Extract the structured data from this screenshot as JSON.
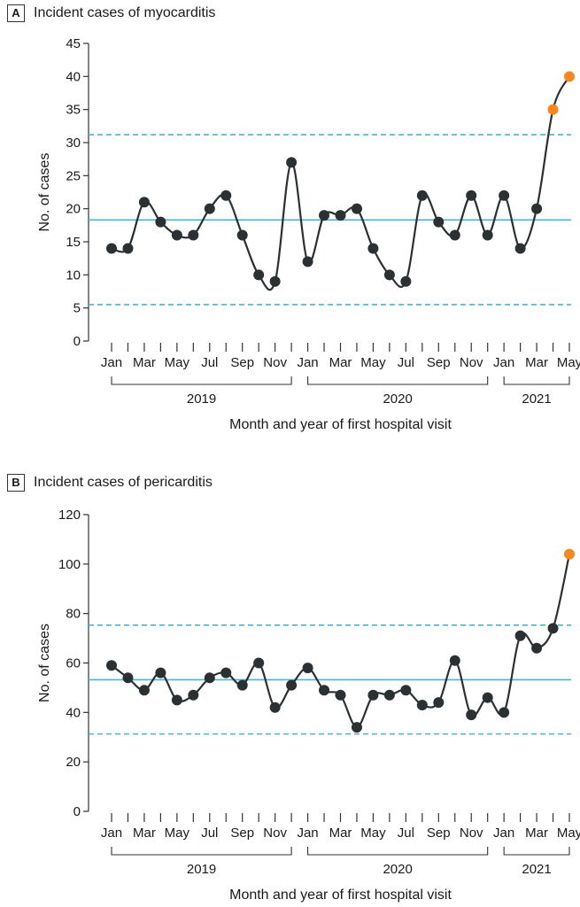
{
  "chart_data": [
    {
      "type": "line",
      "panel_label": "A",
      "title": "Incident cases of myocarditis",
      "xlabel": "Month and year of first hospital visit",
      "ylabel": "No. of cases",
      "ylim": [
        0,
        45
      ],
      "yticks": [
        0,
        5,
        10,
        15,
        20,
        25,
        30,
        35,
        40,
        45
      ],
      "x": [
        "Jan 2019",
        "Feb 2019",
        "Mar 2019",
        "Apr 2019",
        "May 2019",
        "Jun 2019",
        "Jul 2019",
        "Aug 2019",
        "Sep 2019",
        "Oct 2019",
        "Nov 2019",
        "Dec 2019",
        "Jan 2020",
        "Feb 2020",
        "Mar 2020",
        "Apr 2020",
        "May 2020",
        "Jun 2020",
        "Jul 2020",
        "Aug 2020",
        "Sep 2020",
        "Oct 2020",
        "Nov 2020",
        "Dec 2020",
        "Jan 2021",
        "Feb 2021",
        "Mar 2021",
        "Apr 2021",
        "May 2021"
      ],
      "values": [
        14,
        14,
        21,
        18,
        16,
        16,
        20,
        22,
        16,
        10,
        9,
        27,
        12,
        19,
        19,
        20,
        14,
        10,
        9,
        22,
        18,
        16,
        22,
        16,
        22,
        14,
        20,
        35,
        40
      ],
      "highlighted_points": [
        "Apr 2021",
        "May 2021"
      ],
      "center_line": 18.3,
      "upper_limit": 31.2,
      "lower_limit": 5.5,
      "tick_labels": [
        {
          "x": "Jan 2019",
          "label": "Jan"
        },
        {
          "x": "Mar 2019",
          "label": "Mar"
        },
        {
          "x": "May 2019",
          "label": "May"
        },
        {
          "x": "Jul 2019",
          "label": "Jul"
        },
        {
          "x": "Sep 2019",
          "label": "Sep"
        },
        {
          "x": "Nov 2019",
          "label": "Nov"
        },
        {
          "x": "Jan 2020",
          "label": "Jan"
        },
        {
          "x": "Mar 2020",
          "label": "Mar"
        },
        {
          "x": "May 2020",
          "label": "May"
        },
        {
          "x": "Jul 2020",
          "label": "Jul"
        },
        {
          "x": "Sep 2020",
          "label": "Sep"
        },
        {
          "x": "Nov 2020",
          "label": "Nov"
        },
        {
          "x": "Jan 2021",
          "label": "Jan"
        },
        {
          "x": "Mar 2021",
          "label": "Mar"
        },
        {
          "x": "May 2021",
          "label": "May"
        }
      ],
      "year_groups": [
        {
          "label": "2019",
          "start": "Jan 2019",
          "end": "Dec 2019"
        },
        {
          "label": "2020",
          "start": "Jan 2020",
          "end": "Dec 2020"
        },
        {
          "label": "2021",
          "start": "Jan 2021",
          "end": "May 2021"
        }
      ],
      "grid": false
    },
    {
      "type": "line",
      "panel_label": "B",
      "title": "Incident cases of pericarditis",
      "xlabel": "Month and year of first hospital visit",
      "ylabel": "No. of cases",
      "ylim": [
        0,
        120
      ],
      "yticks": [
        0,
        20,
        40,
        60,
        80,
        100,
        120
      ],
      "x": [
        "Jan 2019",
        "Feb 2019",
        "Mar 2019",
        "Apr 2019",
        "May 2019",
        "Jun 2019",
        "Jul 2019",
        "Aug 2019",
        "Sep 2019",
        "Oct 2019",
        "Nov 2019",
        "Dec 2019",
        "Jan 2020",
        "Feb 2020",
        "Mar 2020",
        "Apr 2020",
        "May 2020",
        "Jun 2020",
        "Jul 2020",
        "Aug 2020",
        "Sep 2020",
        "Oct 2020",
        "Nov 2020",
        "Dec 2020",
        "Jan 2021",
        "Feb 2021",
        "Mar 2021",
        "Apr 2021",
        "May 2021"
      ],
      "values": [
        59,
        54,
        49,
        56,
        45,
        47,
        54,
        56,
        51,
        60,
        42,
        51,
        58,
        49,
        47,
        34,
        47,
        47,
        49,
        43,
        44,
        61,
        39,
        46,
        40,
        71,
        66,
        74,
        104
      ],
      "highlighted_points": [
        "May 2021"
      ],
      "center_line": 53.2,
      "upper_limit": 75.3,
      "lower_limit": 31.3,
      "tick_labels": [
        {
          "x": "Jan 2019",
          "label": "Jan"
        },
        {
          "x": "Mar 2019",
          "label": "Mar"
        },
        {
          "x": "May 2019",
          "label": "May"
        },
        {
          "x": "Jul 2019",
          "label": "Jul"
        },
        {
          "x": "Sep 2019",
          "label": "Sep"
        },
        {
          "x": "Nov 2019",
          "label": "Nov"
        },
        {
          "x": "Jan 2020",
          "label": "Jan"
        },
        {
          "x": "Mar 2020",
          "label": "Mar"
        },
        {
          "x": "May 2020",
          "label": "May"
        },
        {
          "x": "Jul 2020",
          "label": "Jul"
        },
        {
          "x": "Sep 2020",
          "label": "Sep"
        },
        {
          "x": "Nov 2020",
          "label": "Nov"
        },
        {
          "x": "Jan 2021",
          "label": "Jan"
        },
        {
          "x": "Mar 2021",
          "label": "Mar"
        },
        {
          "x": "May 2021",
          "label": "May"
        }
      ],
      "year_groups": [
        {
          "label": "2019",
          "start": "Jan 2019",
          "end": "Dec 2019"
        },
        {
          "label": "2020",
          "start": "Jan 2020",
          "end": "Dec 2020"
        },
        {
          "label": "2021",
          "start": "Jan 2021",
          "end": "May 2021"
        }
      ],
      "grid": false
    }
  ],
  "colors": {
    "line": "#2b3033",
    "point": "#2b3033",
    "highlight_point": "#f7871f",
    "center_line": "#4db3cf",
    "control_limit": "#4db3cf",
    "axis": "#333333"
  }
}
